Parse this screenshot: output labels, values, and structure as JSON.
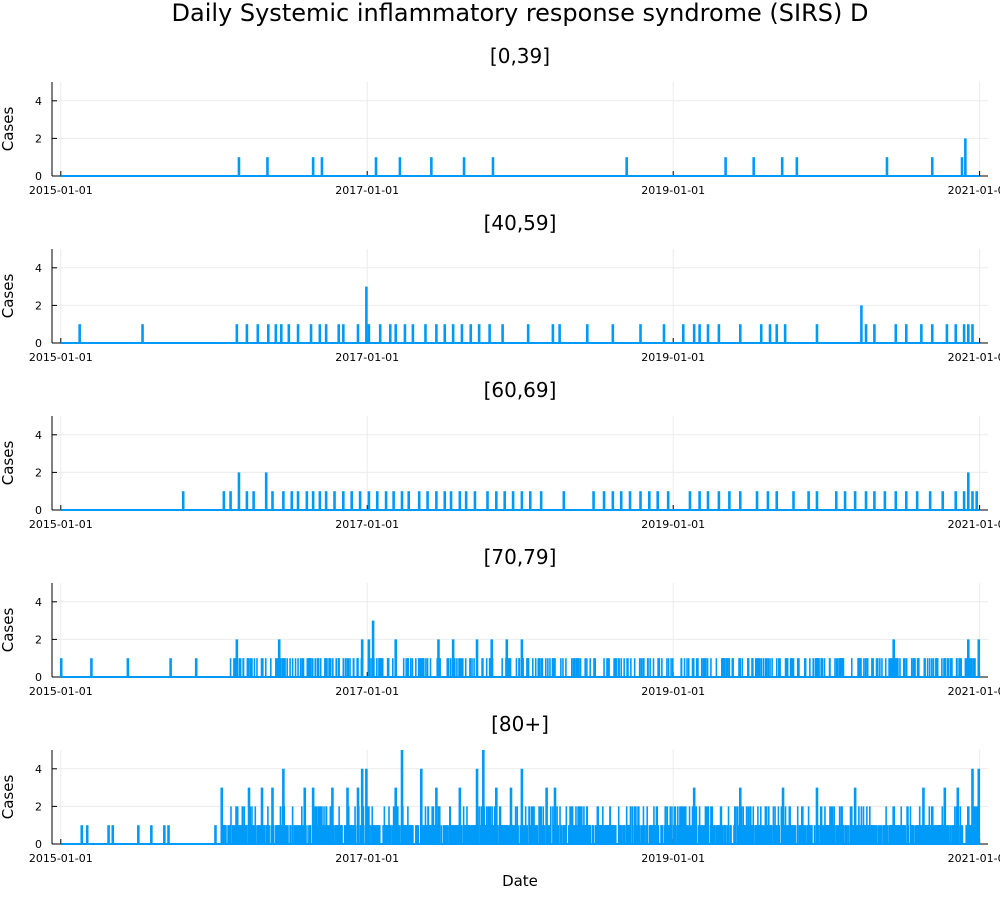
{
  "title": "Daily Systemic inflammatory response syndrome (SIRS) D",
  "colors": {
    "series": "#009AF9",
    "axis": "#000000",
    "grid": "#EBEBEB"
  },
  "chart_data": [
    {
      "type": "line",
      "title": "[0,39]",
      "xlabel": "",
      "ylabel": "Cases",
      "xlim": [
        "2014-12-11",
        "2021-01-21"
      ],
      "ylim": [
        0,
        5
      ],
      "xticks": [
        "2015-01-01",
        "2017-01-01",
        "2019-01-01",
        "2021-01-01"
      ],
      "yticks": [
        0,
        2,
        4
      ],
      "grid": true,
      "legend": "none",
      "baseline": 0,
      "x_range": [
        "2015-01-01",
        "2020-12-31"
      ],
      "events": [
        [
          "2016-03-01",
          1
        ],
        [
          "2016-05-08",
          1
        ],
        [
          "2016-08-25",
          1
        ],
        [
          "2016-09-15",
          1
        ],
        [
          "2017-01-22",
          1
        ],
        [
          "2017-03-20",
          1
        ],
        [
          "2017-06-03",
          1
        ],
        [
          "2017-08-20",
          1
        ],
        [
          "2017-10-28",
          1
        ],
        [
          "2018-09-12",
          1
        ],
        [
          "2019-05-06",
          1
        ],
        [
          "2019-07-12",
          1
        ],
        [
          "2019-09-18",
          1
        ],
        [
          "2019-10-23",
          1
        ],
        [
          "2020-05-25",
          1
        ],
        [
          "2020-09-10",
          1
        ],
        [
          "2020-11-20",
          1
        ],
        [
          "2020-11-28",
          2
        ]
      ]
    },
    {
      "type": "line",
      "title": "[40,59]",
      "xlabel": "",
      "ylabel": "Cases",
      "xlim": [
        "2014-12-11",
        "2021-01-21"
      ],
      "ylim": [
        0,
        5
      ],
      "xticks": [
        "2015-01-01",
        "2017-01-01",
        "2019-01-01",
        "2021-01-01"
      ],
      "yticks": [
        0,
        2,
        4
      ],
      "grid": true,
      "legend": "none",
      "baseline": 0,
      "x_range": [
        "2015-01-01",
        "2020-12-31"
      ],
      "events": [
        [
          "2015-02-15",
          1
        ],
        [
          "2015-07-15",
          1
        ],
        [
          "2016-02-25",
          1
        ],
        [
          "2016-03-20",
          1
        ],
        [
          "2016-04-15",
          1
        ],
        [
          "2016-05-10",
          1
        ],
        [
          "2016-05-28",
          1
        ],
        [
          "2016-06-10",
          1
        ],
        [
          "2016-06-28",
          1
        ],
        [
          "2016-07-20",
          1
        ],
        [
          "2016-08-20",
          1
        ],
        [
          "2016-09-10",
          1
        ],
        [
          "2016-09-25",
          1
        ],
        [
          "2016-10-25",
          1
        ],
        [
          "2016-11-05",
          1
        ],
        [
          "2016-12-10",
          1
        ],
        [
          "2016-12-30",
          3
        ],
        [
          "2017-01-05",
          1
        ],
        [
          "2017-02-01",
          1
        ],
        [
          "2017-02-25",
          1
        ],
        [
          "2017-03-10",
          1
        ],
        [
          "2017-04-01",
          1
        ],
        [
          "2017-04-20",
          1
        ],
        [
          "2017-05-20",
          1
        ],
        [
          "2017-06-15",
          1
        ],
        [
          "2017-07-05",
          1
        ],
        [
          "2017-07-25",
          1
        ],
        [
          "2017-08-15",
          1
        ],
        [
          "2017-09-05",
          1
        ],
        [
          "2017-09-25",
          1
        ],
        [
          "2017-10-20",
          1
        ],
        [
          "2017-11-20",
          1
        ],
        [
          "2018-01-20",
          1
        ],
        [
          "2018-03-20",
          1
        ],
        [
          "2018-04-05",
          1
        ],
        [
          "2018-06-10",
          1
        ],
        [
          "2018-08-10",
          1
        ],
        [
          "2018-10-15",
          1
        ],
        [
          "2018-12-10",
          1
        ],
        [
          "2019-01-25",
          1
        ],
        [
          "2019-02-20",
          1
        ],
        [
          "2019-03-05",
          1
        ],
        [
          "2019-03-25",
          1
        ],
        [
          "2019-04-20",
          1
        ],
        [
          "2019-06-10",
          1
        ],
        [
          "2019-07-30",
          1
        ],
        [
          "2019-08-20",
          1
        ],
        [
          "2019-09-05",
          1
        ],
        [
          "2019-09-25",
          1
        ],
        [
          "2019-12-10",
          1
        ],
        [
          "2020-03-25",
          2
        ],
        [
          "2020-04-05",
          1
        ],
        [
          "2020-04-25",
          1
        ],
        [
          "2020-06-15",
          1
        ],
        [
          "2020-07-10",
          1
        ],
        [
          "2020-08-15",
          1
        ],
        [
          "2020-09-10",
          1
        ],
        [
          "2020-10-15",
          1
        ],
        [
          "2020-11-05",
          1
        ],
        [
          "2020-11-25",
          1
        ],
        [
          "2020-12-05",
          1
        ],
        [
          "2020-12-15",
          1
        ]
      ]
    },
    {
      "type": "line",
      "title": "[60,69]",
      "xlabel": "",
      "ylabel": "Cases",
      "xlim": [
        "2014-12-11",
        "2021-01-21"
      ],
      "ylim": [
        0,
        5
      ],
      "xticks": [
        "2015-01-01",
        "2017-01-01",
        "2019-01-01",
        "2021-01-01"
      ],
      "yticks": [
        0,
        2,
        4
      ],
      "grid": true,
      "legend": "none",
      "baseline": 0,
      "x_range": [
        "2015-01-01",
        "2020-12-31"
      ],
      "events": [
        [
          "2015-10-20",
          1
        ],
        [
          "2016-01-25",
          1
        ],
        [
          "2016-02-10",
          1
        ],
        [
          "2016-03-01",
          2
        ],
        [
          "2016-03-20",
          1
        ],
        [
          "2016-04-05",
          1
        ],
        [
          "2016-05-05",
          2
        ],
        [
          "2016-05-20",
          1
        ],
        [
          "2016-06-15",
          1
        ],
        [
          "2016-07-05",
          1
        ],
        [
          "2016-07-20",
          1
        ],
        [
          "2016-08-10",
          1
        ],
        [
          "2016-08-25",
          1
        ],
        [
          "2016-09-10",
          1
        ],
        [
          "2016-09-25",
          1
        ],
        [
          "2016-10-15",
          1
        ],
        [
          "2016-11-05",
          1
        ],
        [
          "2016-11-25",
          1
        ],
        [
          "2016-12-15",
          1
        ],
        [
          "2017-01-05",
          1
        ],
        [
          "2017-01-25",
          1
        ],
        [
          "2017-02-15",
          1
        ],
        [
          "2017-03-05",
          1
        ],
        [
          "2017-03-25",
          1
        ],
        [
          "2017-04-10",
          1
        ],
        [
          "2017-05-05",
          1
        ],
        [
          "2017-05-25",
          1
        ],
        [
          "2017-06-15",
          1
        ],
        [
          "2017-07-05",
          1
        ],
        [
          "2017-07-20",
          1
        ],
        [
          "2017-08-10",
          1
        ],
        [
          "2017-08-25",
          1
        ],
        [
          "2017-09-15",
          1
        ],
        [
          "2017-10-15",
          1
        ],
        [
          "2017-11-05",
          1
        ],
        [
          "2017-11-25",
          1
        ],
        [
          "2017-12-15",
          1
        ],
        [
          "2018-01-05",
          1
        ],
        [
          "2018-01-25",
          1
        ],
        [
          "2018-02-20",
          1
        ],
        [
          "2018-04-15",
          1
        ],
        [
          "2018-06-25",
          1
        ],
        [
          "2018-07-20",
          1
        ],
        [
          "2018-08-10",
          1
        ],
        [
          "2018-08-30",
          1
        ],
        [
          "2018-09-20",
          1
        ],
        [
          "2018-10-15",
          1
        ],
        [
          "2018-11-05",
          1
        ],
        [
          "2018-11-25",
          1
        ],
        [
          "2018-12-20",
          1
        ],
        [
          "2019-02-10",
          1
        ],
        [
          "2019-03-05",
          1
        ],
        [
          "2019-03-25",
          1
        ],
        [
          "2019-04-20",
          1
        ],
        [
          "2019-05-15",
          1
        ],
        [
          "2019-06-10",
          1
        ],
        [
          "2019-07-20",
          1
        ],
        [
          "2019-08-15",
          1
        ],
        [
          "2019-09-05",
          1
        ],
        [
          "2019-10-15",
          1
        ],
        [
          "2019-11-20",
          1
        ],
        [
          "2019-12-10",
          1
        ],
        [
          "2020-01-25",
          1
        ],
        [
          "2020-02-15",
          1
        ],
        [
          "2020-03-10",
          1
        ],
        [
          "2020-04-05",
          1
        ],
        [
          "2020-04-25",
          1
        ],
        [
          "2020-05-20",
          1
        ],
        [
          "2020-06-15",
          1
        ],
        [
          "2020-07-10",
          1
        ],
        [
          "2020-08-05",
          1
        ],
        [
          "2020-09-05",
          1
        ],
        [
          "2020-10-05",
          1
        ],
        [
          "2020-11-05",
          1
        ],
        [
          "2020-11-25",
          1
        ],
        [
          "2020-12-05",
          2
        ],
        [
          "2020-12-15",
          1
        ],
        [
          "2020-12-25",
          1
        ]
      ]
    },
    {
      "type": "line",
      "title": "[70,79]",
      "xlabel": "",
      "ylabel": "Cases",
      "xlim": [
        "2014-12-11",
        "2021-01-21"
      ],
      "ylim": [
        0,
        5
      ],
      "xticks": [
        "2015-01-01",
        "2017-01-01",
        "2019-01-01",
        "2021-01-01"
      ],
      "yticks": [
        0,
        2,
        4
      ],
      "grid": true,
      "legend": "none",
      "baseline": 0,
      "x_range": [
        "2015-01-01",
        "2020-12-31"
      ],
      "dense_ranges": [
        {
          "start": "2016-01-20",
          "end": "2020-12-31",
          "density": 0.22,
          "max": 1
        }
      ],
      "events": [
        [
          "2015-01-02",
          1
        ],
        [
          "2015-03-15",
          1
        ],
        [
          "2015-06-10",
          1
        ],
        [
          "2015-09-20",
          1
        ],
        [
          "2015-11-20",
          1
        ],
        [
          "2016-02-25",
          2
        ],
        [
          "2016-04-25",
          1
        ],
        [
          "2016-06-05",
          2
        ],
        [
          "2016-08-15",
          1
        ],
        [
          "2016-12-20",
          2
        ],
        [
          "2017-01-05",
          2
        ],
        [
          "2017-01-15",
          3
        ],
        [
          "2017-02-20",
          1
        ],
        [
          "2017-03-10",
          2
        ],
        [
          "2017-06-20",
          2
        ],
        [
          "2017-07-25",
          2
        ],
        [
          "2017-09-20",
          2
        ],
        [
          "2017-10-25",
          2
        ],
        [
          "2017-11-30",
          2
        ],
        [
          "2018-01-05",
          2
        ],
        [
          "2018-05-20",
          1
        ],
        [
          "2019-05-10",
          1
        ],
        [
          "2020-02-10",
          1
        ],
        [
          "2020-06-10",
          2
        ],
        [
          "2020-09-20",
          1
        ],
        [
          "2020-10-25",
          1
        ],
        [
          "2020-12-05",
          2
        ],
        [
          "2020-12-30",
          2
        ]
      ]
    },
    {
      "type": "line",
      "title": "[80+]",
      "xlabel": "Date",
      "ylabel": "Cases",
      "xlim": [
        "2014-12-11",
        "2021-01-21"
      ],
      "ylim": [
        0,
        5
      ],
      "xticks": [
        "2015-01-01",
        "2017-01-01",
        "2019-01-01",
        "2021-01-01"
      ],
      "yticks": [
        0,
        2,
        4
      ],
      "grid": true,
      "legend": "none",
      "baseline": 0,
      "x_range": [
        "2015-01-01",
        "2020-12-31"
      ],
      "dense_ranges": [
        {
          "start": "2016-01-20",
          "end": "2020-12-31",
          "density": 0.55,
          "max": 2
        }
      ],
      "events": [
        [
          "2015-02-20",
          1
        ],
        [
          "2015-03-05",
          1
        ],
        [
          "2015-04-25",
          1
        ],
        [
          "2015-05-05",
          1
        ],
        [
          "2015-07-05",
          1
        ],
        [
          "2015-08-05",
          1
        ],
        [
          "2015-09-05",
          1
        ],
        [
          "2015-09-15",
          1
        ],
        [
          "2016-01-05",
          1
        ],
        [
          "2016-01-20",
          3
        ],
        [
          "2016-03-25",
          3
        ],
        [
          "2016-04-25",
          3
        ],
        [
          "2016-05-20",
          3
        ],
        [
          "2016-06-15",
          4
        ],
        [
          "2016-08-05",
          3
        ],
        [
          "2016-08-25",
          3
        ],
        [
          "2016-10-10",
          3
        ],
        [
          "2016-11-15",
          3
        ],
        [
          "2016-12-10",
          3
        ],
        [
          "2016-12-20",
          4
        ],
        [
          "2016-12-30",
          4
        ],
        [
          "2017-03-10",
          3
        ],
        [
          "2017-03-25",
          5
        ],
        [
          "2017-05-10",
          4
        ],
        [
          "2017-06-15",
          3
        ],
        [
          "2017-08-10",
          3
        ],
        [
          "2017-09-20",
          4
        ],
        [
          "2017-10-05",
          5
        ],
        [
          "2017-11-05",
          3
        ],
        [
          "2017-12-10",
          3
        ],
        [
          "2018-01-05",
          4
        ],
        [
          "2018-03-05",
          3
        ],
        [
          "2018-03-25",
          3
        ],
        [
          "2018-07-20",
          1
        ],
        [
          "2019-01-05",
          2
        ],
        [
          "2019-02-20",
          3
        ],
        [
          "2019-03-20",
          2
        ],
        [
          "2019-06-10",
          3
        ],
        [
          "2019-08-10",
          2
        ],
        [
          "2019-09-20",
          3
        ],
        [
          "2019-11-05",
          2
        ],
        [
          "2019-12-10",
          3
        ],
        [
          "2020-03-10",
          3
        ],
        [
          "2020-06-10",
          2
        ],
        [
          "2020-08-20",
          3
        ],
        [
          "2020-09-10",
          2
        ],
        [
          "2020-10-10",
          3
        ],
        [
          "2020-11-10",
          3
        ],
        [
          "2020-12-05",
          2
        ],
        [
          "2020-12-15",
          4
        ],
        [
          "2020-12-20",
          2
        ],
        [
          "2020-12-30",
          4
        ]
      ]
    }
  ]
}
